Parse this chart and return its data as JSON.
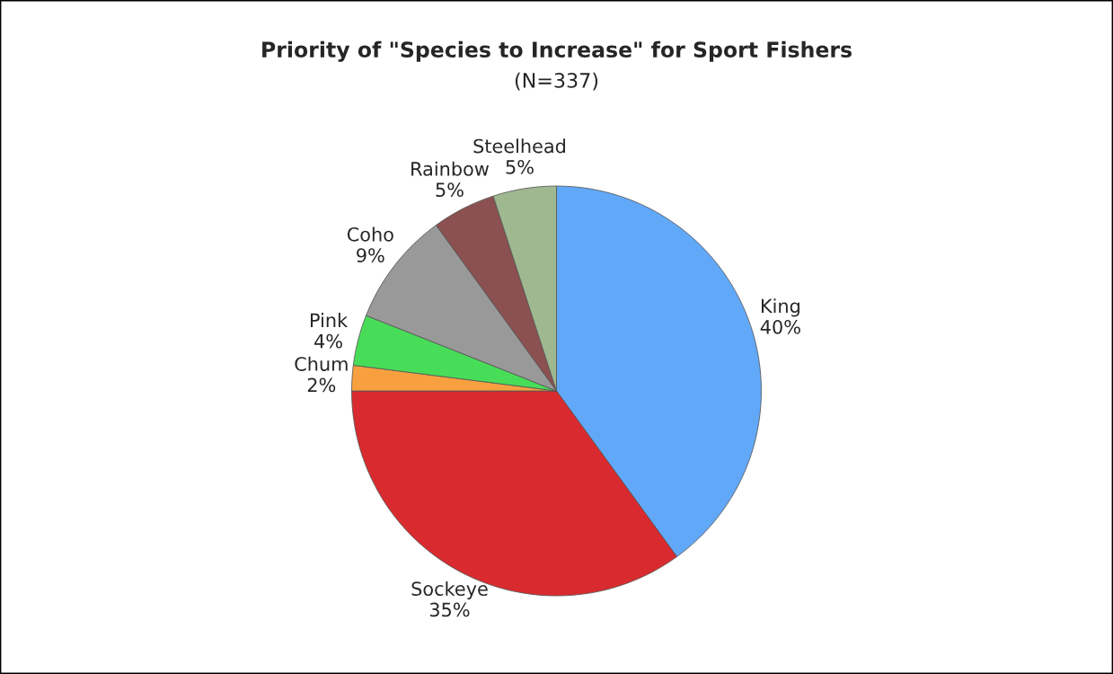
{
  "chart_data": {
    "type": "pie",
    "title": "Priority of \"Species to Increase\" for Sport Fishers",
    "subtitle": "(N=337)",
    "categories": [
      "King",
      "Sockeye",
      "Chum",
      "Pink",
      "Coho",
      "Rainbow",
      "Steelhead"
    ],
    "values": [
      40,
      35,
      2,
      4,
      9,
      5,
      5
    ],
    "value_labels": [
      "40%",
      "35%",
      "2%",
      "4%",
      "9%",
      "5%",
      "5%"
    ],
    "colors": [
      "#62a8f8",
      "#d92b2f",
      "#f8a040",
      "#48dd58",
      "#999999",
      "#8b5050",
      "#a0b890"
    ],
    "legend": false
  }
}
